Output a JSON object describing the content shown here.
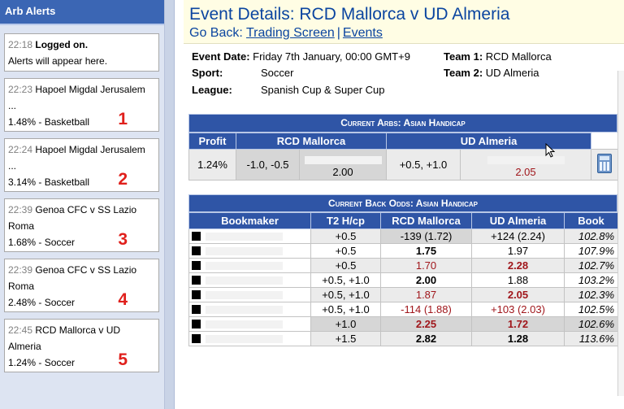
{
  "sidebar": {
    "title": "Arb Alerts",
    "alerts": [
      {
        "time": "22:18",
        "title": "Logged on.",
        "line2": "Alerts will appear here.",
        "line3": "",
        "num": ""
      },
      {
        "time": "22:23",
        "title": "Hapoel Migdal Jerusalem",
        "line2": "...",
        "line3": "1.48% - Basketball",
        "num": "1"
      },
      {
        "time": "22:24",
        "title": "Hapoel Migdal Jerusalem",
        "line2": "...",
        "line3": "3.14% - Basketball",
        "num": "2"
      },
      {
        "time": "22:39",
        "title": "Genoa CFC v SS Lazio",
        "line2": "Roma",
        "line3": "1.68% - Soccer",
        "num": "3"
      },
      {
        "time": "22:39",
        "title": "Genoa CFC v SS Lazio",
        "line2": "Roma",
        "line3": "2.48% - Soccer",
        "num": "4"
      },
      {
        "time": "22:45",
        "title": "RCD Mallorca v UD",
        "line2": "Almeria",
        "line3": "1.24% - Soccer",
        "num": "5"
      }
    ]
  },
  "header": {
    "title": "Event Details: RCD Mallorca v UD Almeria",
    "go_back": "Go Back:",
    "link_trading": "Trading Screen",
    "sep": "|",
    "link_events": "Events"
  },
  "details": {
    "date_label": "Event Date:",
    "date_value": "Friday 7th January, 00:00 GMT+9",
    "sport_label": "Sport:",
    "sport_value": "Soccer",
    "league_label": "League:",
    "league_value": "Spanish Cup & Super Cup",
    "team1_label": "Team 1:",
    "team1_value": "RCD Mallorca",
    "team2_label": "Team 2:",
    "team2_value": "UD Almeria"
  },
  "arbs": {
    "title": "Current Arbs: Asian Handicap",
    "headers": [
      "Profit",
      "RCD Mallorca",
      "UD Almeria"
    ],
    "row": {
      "profit": "1.24%",
      "h1": "-1.0, -0.5",
      "o1": "2.00",
      "h2": "+0.5, +1.0",
      "o2": "2.05"
    },
    "calc_icon": "calculator-icon"
  },
  "odds": {
    "title": "Current Back Odds: Asian Handicap",
    "headers": [
      "Bookmaker",
      "T2 H/cp",
      "RCD Mallorca",
      "UD Almeria",
      "Book"
    ],
    "rows": [
      {
        "hcp": "+0.5",
        "t1": "-139 (1.72)",
        "t2": "+124 (2.24)",
        "book": "102.8%"
      },
      {
        "hcp": "+0.5",
        "t1": "1.75",
        "t2": "1.97",
        "book": "107.9%"
      },
      {
        "hcp": "+0.5",
        "t1": "1.70",
        "t2": "2.28",
        "book": "102.7%"
      },
      {
        "hcp": "+0.5, +1.0",
        "t1": "2.00",
        "t2": "1.88",
        "book": "103.2%"
      },
      {
        "hcp": "+0.5, +1.0",
        "t1": "1.87",
        "t2": "2.05",
        "book": "102.3%"
      },
      {
        "hcp": "+0.5, +1.0",
        "t1": "-114 (1.88)",
        "t2": "+103 (2.03)",
        "book": "102.5%"
      },
      {
        "hcp": "+1.0",
        "t1": "2.25",
        "t2": "1.72",
        "book": "102.6%"
      },
      {
        "hcp": "+1.5",
        "t1": "2.82",
        "t2": "1.28",
        "book": "113.6%"
      }
    ]
  },
  "colors": {
    "accent_blue": "#2f55a6",
    "title_blue": "#0b45a0",
    "alert_red": "#e0201c",
    "odds_red": "#a0161b",
    "title_bg": "#fffde4"
  }
}
